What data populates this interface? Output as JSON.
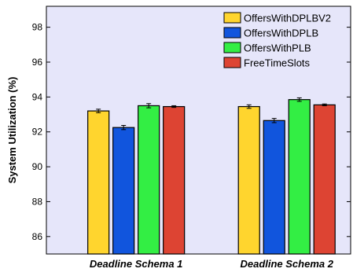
{
  "chart_data": {
    "type": "bar",
    "title": "",
    "xlabel": "",
    "ylabel": "System Utilization (%)",
    "ylim": [
      85,
      99.2
    ],
    "yticks": [
      86,
      88,
      90,
      92,
      94,
      96,
      98
    ],
    "grid": false,
    "legend_position": "top-right",
    "categories": [
      "Deadline Schema 1",
      "Deadline Schema 2"
    ],
    "series": [
      {
        "name": "OffersWithDPLBV2",
        "color": "#ffd52e",
        "values": [
          93.2,
          93.45
        ],
        "errors": [
          0.1,
          0.1
        ]
      },
      {
        "name": "OffersWithDPLB",
        "color": "#1155dd",
        "values": [
          92.25,
          92.65
        ],
        "errors": [
          0.12,
          0.12
        ]
      },
      {
        "name": "OffersWithPLB",
        "color": "#33ee44",
        "values": [
          93.5,
          93.85
        ],
        "errors": [
          0.12,
          0.1
        ]
      },
      {
        "name": "FreeTimeSlots",
        "color": "#dd4433",
        "values": [
          93.45,
          93.55
        ],
        "errors": [
          0.05,
          0.05
        ]
      }
    ],
    "plot_background": "#e6e6fa"
  }
}
